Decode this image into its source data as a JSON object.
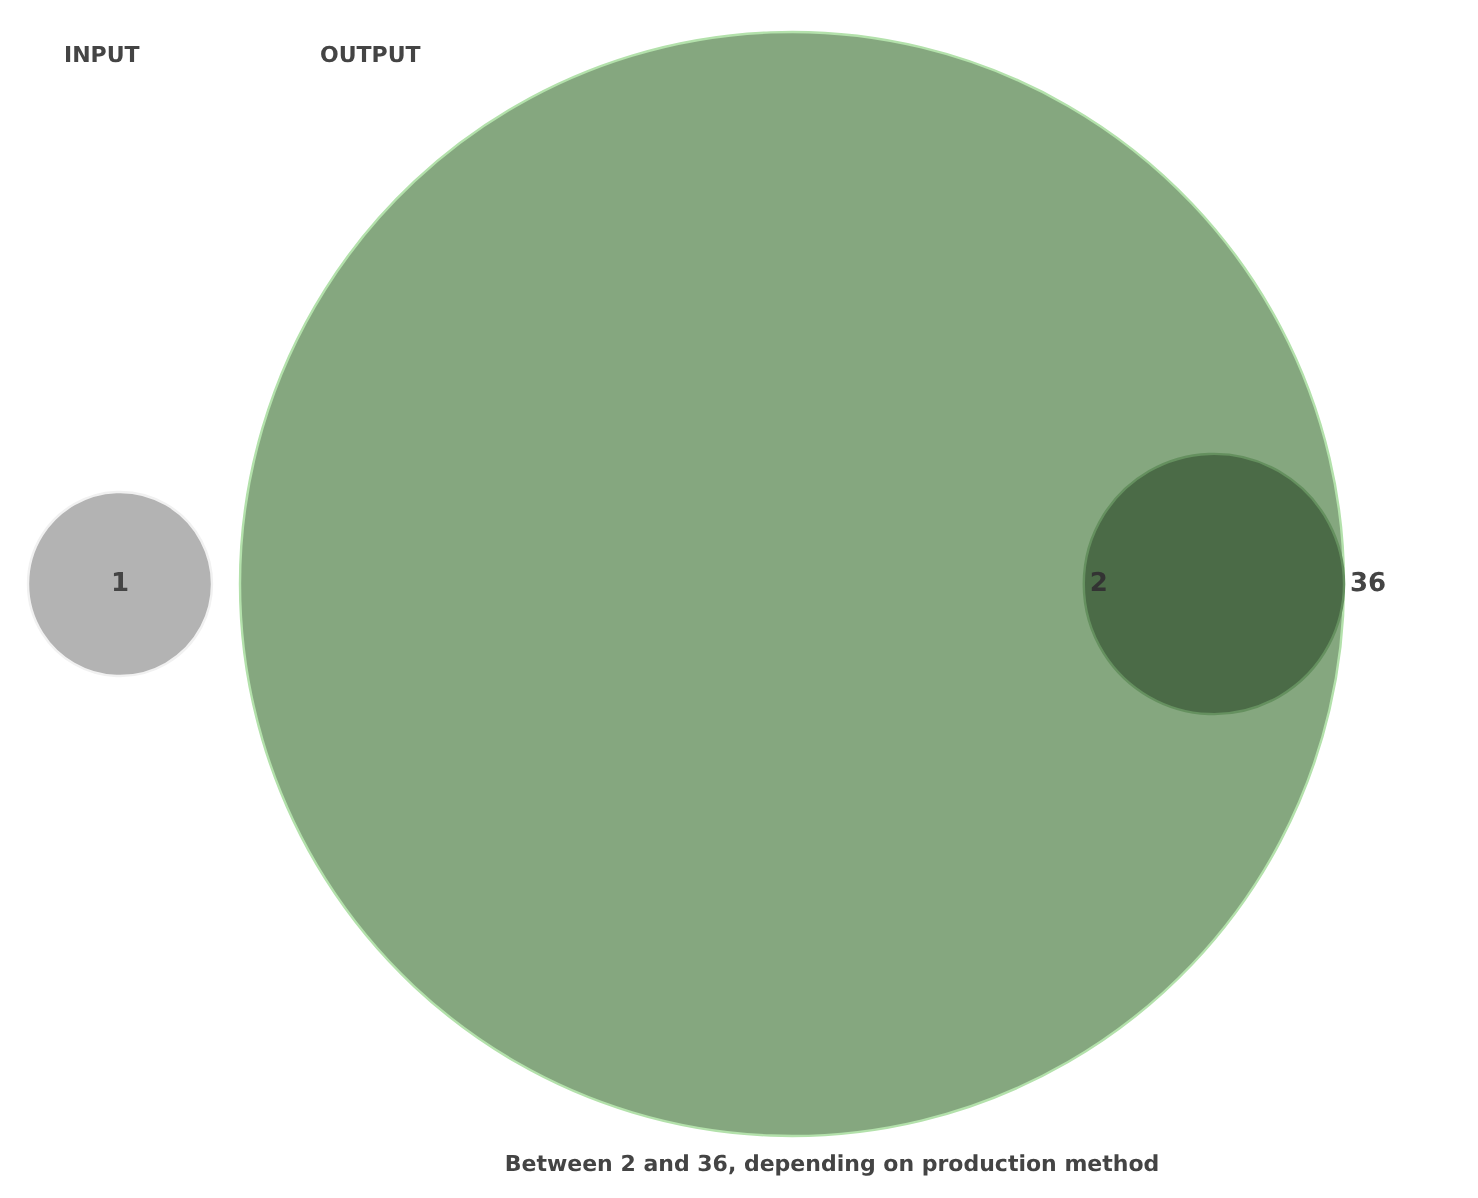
{
  "chart_data": {
    "type": "other",
    "categories": [
      "INPUT",
      "OUTPUT"
    ],
    "series": [
      {
        "color": "#b3b3b3",
        "values": [
          1,
          null
        ]
      },
      {
        "color": "#85a77f",
        "values": [
          null,
          36
        ]
      },
      {
        "color": "#4b6b47",
        "values": [
          null,
          2
        ]
      }
    ],
    "data_labels": true,
    "annotations": [
      "Between 2 and 36, depending on production method"
    ]
  }
}
